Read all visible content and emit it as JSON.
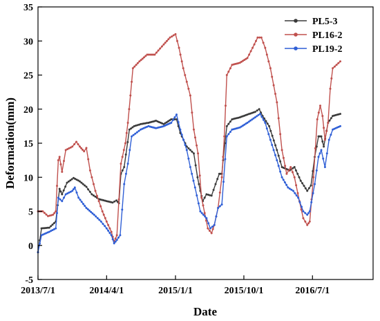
{
  "chart_data": {
    "type": "line",
    "title": "",
    "xlabel": "Date",
    "ylabel": "Deformation(mm)",
    "x_range": [
      "2013-07-01",
      "2017-02-28"
    ],
    "xlim_dates": [
      "2013-07-01",
      "2017-02-28"
    ],
    "x_ticks": [
      "2013/7/1",
      "2014/4/1",
      "2015/1/1",
      "2015/10/1",
      "2016/7/1"
    ],
    "x_tick_dates": [
      "2013-07-01",
      "2014-04-01",
      "2015-01-01",
      "2015-10-01",
      "2016-07-01"
    ],
    "ylim": [
      -5,
      35
    ],
    "y_ticks": [
      "-5",
      "0",
      "5",
      "10",
      "15",
      "20",
      "25",
      "30",
      "35"
    ],
    "y_tick_values": [
      -5,
      0,
      5,
      10,
      15,
      20,
      25,
      30,
      35
    ],
    "grid": false,
    "legend_position": "top-right",
    "series": [
      {
        "name": "PL5-3",
        "color": "#3a3a3a",
        "points": [
          [
            "2013-07-01",
            -1.0
          ],
          [
            "2013-07-15",
            2.5
          ],
          [
            "2013-08-15",
            2.6
          ],
          [
            "2013-09-10",
            3.5
          ],
          [
            "2013-09-25",
            8.3
          ],
          [
            "2013-10-05",
            7.5
          ],
          [
            "2013-10-25",
            9.2
          ],
          [
            "2013-11-20",
            9.9
          ],
          [
            "2013-12-15",
            9.4
          ],
          [
            "2014-01-10",
            8.6
          ],
          [
            "2014-02-01",
            7.5
          ],
          [
            "2014-03-01",
            6.8
          ],
          [
            "2014-04-01",
            6.5
          ],
          [
            "2014-04-25",
            6.3
          ],
          [
            "2014-05-10",
            6.6
          ],
          [
            "2014-05-20",
            6.2
          ],
          [
            "2014-05-28",
            10.5
          ],
          [
            "2014-06-10",
            11.5
          ],
          [
            "2014-07-01",
            17.0
          ],
          [
            "2014-07-20",
            17.5
          ],
          [
            "2014-08-15",
            17.8
          ],
          [
            "2014-09-15",
            18.0
          ],
          [
            "2014-10-15",
            18.3
          ],
          [
            "2014-11-15",
            17.8
          ],
          [
            "2014-12-15",
            18.5
          ],
          [
            "2015-01-05",
            18.5
          ],
          [
            "2015-01-20",
            16.5
          ],
          [
            "2015-02-15",
            14.5
          ],
          [
            "2015-03-15",
            13.5
          ],
          [
            "2015-03-30",
            10.0
          ],
          [
            "2015-04-10",
            8.0
          ],
          [
            "2015-04-20",
            6.5
          ],
          [
            "2015-05-05",
            7.5
          ],
          [
            "2015-05-25",
            7.3
          ],
          [
            "2015-06-10",
            9.0
          ],
          [
            "2015-06-25",
            10.5
          ],
          [
            "2015-07-05",
            10.5
          ],
          [
            "2015-07-10",
            12.5
          ],
          [
            "2015-07-25",
            17.5
          ],
          [
            "2015-08-15",
            18.5
          ],
          [
            "2015-09-15",
            18.8
          ],
          [
            "2015-10-15",
            19.2
          ],
          [
            "2015-11-15",
            19.6
          ],
          [
            "2015-12-01",
            20.0
          ],
          [
            "2015-12-15",
            19.0
          ],
          [
            "2016-01-10",
            17.5
          ],
          [
            "2016-02-10",
            14.0
          ],
          [
            "2016-03-01",
            11.5
          ],
          [
            "2016-04-01",
            11.0
          ],
          [
            "2016-04-20",
            11.5
          ],
          [
            "2016-05-15",
            9.5
          ],
          [
            "2016-06-10",
            8.0
          ],
          [
            "2016-06-25",
            8.8
          ],
          [
            "2016-07-10",
            13.0
          ],
          [
            "2016-07-25",
            16.0
          ],
          [
            "2016-08-05",
            16.0
          ],
          [
            "2016-08-15",
            14.5
          ],
          [
            "2016-09-01",
            18.0
          ],
          [
            "2016-09-20",
            19.0
          ],
          [
            "2016-10-20",
            19.3
          ]
        ]
      },
      {
        "name": "PL16-2",
        "color": "#c0504d",
        "points": [
          [
            "2013-07-01",
            5.0
          ],
          [
            "2013-07-20",
            5.0
          ],
          [
            "2013-08-10",
            4.3
          ],
          [
            "2013-08-30",
            4.5
          ],
          [
            "2013-09-10",
            5.0
          ],
          [
            "2013-09-20",
            12.5
          ],
          [
            "2013-09-25",
            13.0
          ],
          [
            "2013-10-05",
            10.8
          ],
          [
            "2013-10-20",
            14.0
          ],
          [
            "2013-11-15",
            14.5
          ],
          [
            "2013-12-01",
            15.2
          ],
          [
            "2013-12-15",
            14.5
          ],
          [
            "2014-01-01",
            13.8
          ],
          [
            "2014-01-10",
            14.3
          ],
          [
            "2014-01-25",
            11.0
          ],
          [
            "2014-02-15",
            8.0
          ],
          [
            "2014-03-15",
            5.0
          ],
          [
            "2014-04-01",
            3.5
          ],
          [
            "2014-04-20",
            2.0
          ],
          [
            "2014-05-01",
            0.5
          ],
          [
            "2014-05-12",
            1.5
          ],
          [
            "2014-05-28",
            12.0
          ],
          [
            "2014-06-15",
            15.0
          ],
          [
            "2014-06-25",
            18.0
          ],
          [
            "2014-07-05",
            22.0
          ],
          [
            "2014-07-15",
            26.0
          ],
          [
            "2014-08-10",
            27.0
          ],
          [
            "2014-09-10",
            28.0
          ],
          [
            "2014-10-10",
            28.0
          ],
          [
            "2014-11-15",
            29.5
          ],
          [
            "2014-12-10",
            30.5
          ],
          [
            "2015-01-01",
            31.0
          ],
          [
            "2015-01-15",
            29.0
          ],
          [
            "2015-02-01",
            26.0
          ],
          [
            "2015-03-01",
            22.0
          ],
          [
            "2015-03-15",
            17.0
          ],
          [
            "2015-04-01",
            13.5
          ],
          [
            "2015-04-15",
            7.0
          ],
          [
            "2015-05-10",
            2.5
          ],
          [
            "2015-05-25",
            1.8
          ],
          [
            "2015-06-05",
            3.0
          ],
          [
            "2015-06-20",
            5.5
          ],
          [
            "2015-07-05",
            10.0
          ],
          [
            "2015-07-15",
            16.0
          ],
          [
            "2015-07-25",
            25.0
          ],
          [
            "2015-08-15",
            26.5
          ],
          [
            "2015-09-15",
            26.8
          ],
          [
            "2015-10-15",
            27.5
          ],
          [
            "2015-11-05",
            29.0
          ],
          [
            "2015-11-25",
            30.5
          ],
          [
            "2015-12-10",
            30.5
          ],
          [
            "2015-12-25",
            29.0
          ],
          [
            "2016-01-15",
            26.0
          ],
          [
            "2016-02-10",
            21.0
          ],
          [
            "2016-03-01",
            14.0
          ],
          [
            "2016-03-20",
            10.5
          ],
          [
            "2016-04-05",
            11.5
          ],
          [
            "2016-04-20",
            10.0
          ],
          [
            "2016-05-10",
            6.5
          ],
          [
            "2016-05-25",
            4.0
          ],
          [
            "2016-06-10",
            3.0
          ],
          [
            "2016-06-20",
            3.5
          ],
          [
            "2016-07-05",
            10.0
          ],
          [
            "2016-07-20",
            18.5
          ],
          [
            "2016-08-01",
            20.5
          ],
          [
            "2016-08-10",
            19.0
          ],
          [
            "2016-08-20",
            15.5
          ],
          [
            "2016-09-01",
            18.0
          ],
          [
            "2016-09-10",
            23.0
          ],
          [
            "2016-09-20",
            26.0
          ],
          [
            "2016-10-05",
            26.5
          ],
          [
            "2016-10-20",
            27.0
          ]
        ]
      },
      {
        "name": "PL19-2",
        "color": "#2f5fd6",
        "points": [
          [
            "2013-07-01",
            -1.0
          ],
          [
            "2013-07-15",
            1.5
          ],
          [
            "2013-08-15",
            2.0
          ],
          [
            "2013-09-10",
            2.5
          ],
          [
            "2013-09-20",
            7.0
          ],
          [
            "2013-10-05",
            6.5
          ],
          [
            "2013-10-20",
            7.5
          ],
          [
            "2013-11-15",
            8.0
          ],
          [
            "2013-11-25",
            8.5
          ],
          [
            "2013-12-10",
            7.0
          ],
          [
            "2014-01-10",
            5.5
          ],
          [
            "2014-02-10",
            4.5
          ],
          [
            "2014-03-10",
            3.5
          ],
          [
            "2014-04-01",
            2.5
          ],
          [
            "2014-04-20",
            1.5
          ],
          [
            "2014-05-01",
            0.3
          ],
          [
            "2014-05-12",
            0.8
          ],
          [
            "2014-05-25",
            1.5
          ],
          [
            "2014-06-10",
            9.0
          ],
          [
            "2014-06-25",
            12.0
          ],
          [
            "2014-07-10",
            16.0
          ],
          [
            "2014-08-15",
            17.0
          ],
          [
            "2014-09-15",
            17.5
          ],
          [
            "2014-10-15",
            17.2
          ],
          [
            "2014-11-15",
            17.5
          ],
          [
            "2014-12-15",
            18.0
          ],
          [
            "2015-01-05",
            19.2
          ],
          [
            "2015-01-20",
            17.0
          ],
          [
            "2015-02-15",
            14.0
          ],
          [
            "2015-03-01",
            11.5
          ],
          [
            "2015-03-20",
            8.5
          ],
          [
            "2015-04-10",
            5.0
          ],
          [
            "2015-05-05",
            4.0
          ],
          [
            "2015-05-20",
            2.5
          ],
          [
            "2015-06-05",
            3.0
          ],
          [
            "2015-06-20",
            5.5
          ],
          [
            "2015-07-05",
            6.0
          ],
          [
            "2015-07-25",
            16.0
          ],
          [
            "2015-08-15",
            17.0
          ],
          [
            "2015-09-15",
            17.3
          ],
          [
            "2015-10-15",
            18.0
          ],
          [
            "2015-11-15",
            18.8
          ],
          [
            "2015-12-05",
            19.3
          ],
          [
            "2015-12-25",
            18.0
          ],
          [
            "2016-01-15",
            15.5
          ],
          [
            "2016-02-10",
            12.5
          ],
          [
            "2016-03-01",
            10.0
          ],
          [
            "2016-03-25",
            8.5
          ],
          [
            "2016-04-15",
            8.0
          ],
          [
            "2016-05-05",
            7.0
          ],
          [
            "2016-05-25",
            5.0
          ],
          [
            "2016-06-10",
            4.5
          ],
          [
            "2016-06-20",
            5.0
          ],
          [
            "2016-07-10",
            9.0
          ],
          [
            "2016-07-25",
            13.0
          ],
          [
            "2016-08-05",
            14.0
          ],
          [
            "2016-08-20",
            11.5
          ],
          [
            "2016-09-05",
            15.5
          ],
          [
            "2016-09-20",
            17.0
          ],
          [
            "2016-10-20",
            17.5
          ]
        ]
      }
    ]
  }
}
